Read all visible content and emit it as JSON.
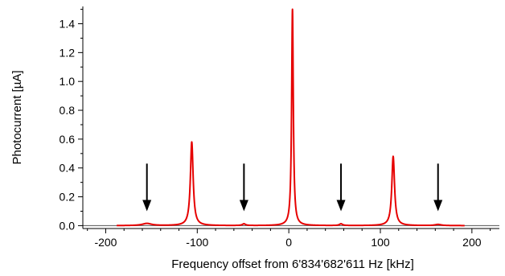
{
  "chart_data": {
    "type": "line",
    "xlabel": "Frequency offset from 6'834'682'611 Hz [kHz]",
    "ylabel": "Photocurrent [µA]",
    "xlim": [
      -225,
      230
    ],
    "ylim": [
      -0.02,
      1.52
    ],
    "x_ticks": [
      -200,
      -100,
      0,
      100,
      200
    ],
    "x_tick_labels": [
      "-200",
      "-100",
      "0",
      "100",
      "200"
    ],
    "y_ticks": [
      0.0,
      0.2,
      0.4,
      0.6,
      0.8,
      1.0,
      1.2,
      1.4
    ],
    "y_tick_labels": [
      "0.0",
      "0.2",
      "0.4",
      "0.6",
      "0.8",
      "1.0",
      "1.2",
      "1.4"
    ],
    "grid": false,
    "legend": "none",
    "baseline": 0.0,
    "series": [
      {
        "color": "#e60000",
        "x_range": [
          -188,
          192
        ],
        "peaks": [
          {
            "x": -155,
            "y": 0.015,
            "width": 6
          },
          {
            "x": -106,
            "y": 0.58,
            "width": 1.8
          },
          {
            "x": -49,
            "y": 0.012,
            "width": 2
          },
          {
            "x": 4,
            "y": 1.5,
            "width": 1.1
          },
          {
            "x": 57,
            "y": 0.012,
            "width": 2
          },
          {
            "x": 114,
            "y": 0.48,
            "width": 1.8
          },
          {
            "x": 163,
            "y": 0.008,
            "width": 4
          }
        ]
      }
    ],
    "annotations": [
      {
        "type": "arrow-down",
        "x": -155,
        "y_from": 0.43,
        "y_to": 0.1
      },
      {
        "type": "arrow-down",
        "x": -49,
        "y_from": 0.43,
        "y_to": 0.1
      },
      {
        "type": "arrow-down",
        "x": 57,
        "y_from": 0.43,
        "y_to": 0.1
      },
      {
        "type": "arrow-down",
        "x": 163,
        "y_from": 0.43,
        "y_to": 0.1
      }
    ],
    "colors": {
      "axis": "#000000",
      "baseline": "#555555",
      "arrow": "#000000"
    }
  }
}
